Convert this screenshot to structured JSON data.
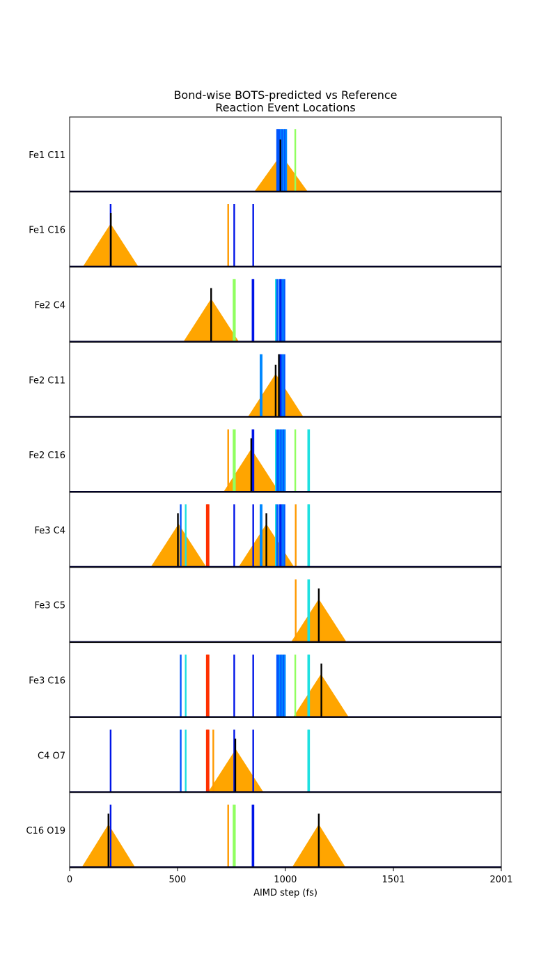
{
  "chart_data": {
    "type": "event-strip",
    "title_line1": "Bond-wise BOTS-predicted vs Reference",
    "title_line2": "Reaction Event Locations",
    "xlabel": "AIMD step (fs)",
    "xlim": [
      0,
      2001
    ],
    "xticks": [
      {
        "value": 0,
        "label": "0"
      },
      {
        "value": 500,
        "label": "500"
      },
      {
        "value": 1000,
        "label": "1000"
      },
      {
        "value": 1501,
        "label": "1501"
      },
      {
        "value": 2001,
        "label": "2001"
      }
    ],
    "colors": {
      "triangle": "#ffa500",
      "reference": "#000000",
      "dark_blue": "#0015e8",
      "blue": "#0055ff",
      "light_blue": "#0088ff",
      "cyan": "#1ee0e0",
      "green": "#90ff60",
      "orange": "#ff9a00",
      "red": "#ff3000",
      "baseline": "#00002a"
    },
    "panels": [
      {
        "label": "Fe1 C11",
        "triangles": [
          {
            "center": 980,
            "half_width": 125,
            "height": 0.5
          }
        ],
        "predicted": [
          {
            "x": 962,
            "h": 0.84,
            "c": "blue"
          },
          {
            "x": 968,
            "h": 0.84,
            "c": "blue"
          },
          {
            "x": 974,
            "h": 0.84,
            "c": "blue"
          },
          {
            "x": 980,
            "h": 0.84,
            "c": "light_blue"
          },
          {
            "x": 986,
            "h": 0.84,
            "c": "blue"
          },
          {
            "x": 992,
            "h": 0.84,
            "c": "light_blue"
          },
          {
            "x": 998,
            "h": 0.84,
            "c": "blue"
          },
          {
            "x": 1004,
            "h": 0.84,
            "c": "light_blue"
          },
          {
            "x": 1046,
            "h": 0.84,
            "c": "green"
          }
        ],
        "reference": [
          {
            "x": 977,
            "h": 0.7
          }
        ]
      },
      {
        "label": "Fe1 C16",
        "triangles": [
          {
            "center": 190,
            "half_width": 130,
            "height": 0.58
          }
        ],
        "predicted": [
          {
            "x": 190,
            "h": 0.84,
            "c": "dark_blue"
          },
          {
            "x": 735,
            "h": 0.84,
            "c": "orange"
          },
          {
            "x": 763,
            "h": 0.84,
            "c": "dark_blue"
          },
          {
            "x": 851,
            "h": 0.84,
            "c": "dark_blue"
          }
        ],
        "reference": [
          {
            "x": 191,
            "h": 0.72
          }
        ]
      },
      {
        "label": "Fe2 C4",
        "triangles": [
          {
            "center": 656,
            "half_width": 130,
            "height": 0.58
          }
        ],
        "predicted": [
          {
            "x": 760,
            "h": 0.84,
            "c": "green"
          },
          {
            "x": 766,
            "h": 0.84,
            "c": "green"
          },
          {
            "x": 848,
            "h": 0.84,
            "c": "dark_blue"
          },
          {
            "x": 852,
            "h": 0.84,
            "c": "dark_blue"
          },
          {
            "x": 956,
            "h": 0.84,
            "c": "cyan"
          },
          {
            "x": 962,
            "h": 0.84,
            "c": "blue"
          },
          {
            "x": 972,
            "h": 0.84,
            "c": "blue"
          },
          {
            "x": 978,
            "h": 0.84,
            "c": "dark_blue"
          },
          {
            "x": 984,
            "h": 0.84,
            "c": "blue"
          },
          {
            "x": 990,
            "h": 0.84,
            "c": "light_blue"
          },
          {
            "x": 996,
            "h": 0.84,
            "c": "blue"
          }
        ],
        "reference": [
          {
            "x": 656,
            "h": 0.72
          }
        ]
      },
      {
        "label": "Fe2 C11",
        "triangles": [
          {
            "center": 955,
            "half_width": 130,
            "height": 0.58
          }
        ],
        "predicted": [
          {
            "x": 885,
            "h": 0.84,
            "c": "light_blue"
          },
          {
            "x": 890,
            "h": 0.84,
            "c": "light_blue"
          },
          {
            "x": 972,
            "h": 0.84,
            "c": "blue"
          },
          {
            "x": 978,
            "h": 0.84,
            "c": "dark_blue"
          },
          {
            "x": 984,
            "h": 0.84,
            "c": "blue"
          },
          {
            "x": 990,
            "h": 0.84,
            "c": "light_blue"
          },
          {
            "x": 996,
            "h": 0.84,
            "c": "blue"
          }
        ],
        "reference": [
          {
            "x": 955,
            "h": 0.7
          },
          {
            "x": 970,
            "h": 0.84
          }
        ]
      },
      {
        "label": "Fe2 C16",
        "triangles": [
          {
            "center": 842,
            "half_width": 130,
            "height": 0.58
          }
        ],
        "predicted": [
          {
            "x": 735,
            "h": 0.84,
            "c": "orange"
          },
          {
            "x": 760,
            "h": 0.84,
            "c": "green"
          },
          {
            "x": 766,
            "h": 0.84,
            "c": "green"
          },
          {
            "x": 848,
            "h": 0.84,
            "c": "dark_blue"
          },
          {
            "x": 852,
            "h": 0.84,
            "c": "dark_blue"
          },
          {
            "x": 956,
            "h": 0.84,
            "c": "cyan"
          },
          {
            "x": 962,
            "h": 0.84,
            "c": "blue"
          },
          {
            "x": 968,
            "h": 0.84,
            "c": "blue"
          },
          {
            "x": 974,
            "h": 0.84,
            "c": "light_blue"
          },
          {
            "x": 980,
            "h": 0.84,
            "c": "blue"
          },
          {
            "x": 986,
            "h": 0.84,
            "c": "light_blue"
          },
          {
            "x": 992,
            "h": 0.84,
            "c": "blue"
          },
          {
            "x": 998,
            "h": 0.84,
            "c": "light_blue"
          },
          {
            "x": 1046,
            "h": 0.84,
            "c": "green"
          },
          {
            "x": 1106,
            "h": 0.84,
            "c": "cyan"
          },
          {
            "x": 1110,
            "h": 0.84,
            "c": "cyan"
          }
        ],
        "reference": [
          {
            "x": 842,
            "h": 0.72
          }
        ]
      },
      {
        "label": "Fe3 C4",
        "triangles": [
          {
            "center": 505,
            "half_width": 130,
            "height": 0.58
          },
          {
            "center": 912,
            "half_width": 130,
            "height": 0.58
          }
        ],
        "predicted": [
          {
            "x": 515,
            "h": 0.84,
            "c": "blue"
          },
          {
            "x": 538,
            "h": 0.84,
            "c": "cyan"
          },
          {
            "x": 636,
            "h": 0.84,
            "c": "red"
          },
          {
            "x": 640,
            "h": 0.84,
            "c": "red"
          },
          {
            "x": 644,
            "h": 0.84,
            "c": "red"
          },
          {
            "x": 763,
            "h": 0.84,
            "c": "dark_blue"
          },
          {
            "x": 851,
            "h": 0.84,
            "c": "dark_blue"
          },
          {
            "x": 885,
            "h": 0.84,
            "c": "light_blue"
          },
          {
            "x": 890,
            "h": 0.84,
            "c": "light_blue"
          },
          {
            "x": 956,
            "h": 0.84,
            "c": "cyan"
          },
          {
            "x": 962,
            "h": 0.84,
            "c": "blue"
          },
          {
            "x": 972,
            "h": 0.84,
            "c": "blue"
          },
          {
            "x": 978,
            "h": 0.84,
            "c": "dark_blue"
          },
          {
            "x": 984,
            "h": 0.84,
            "c": "blue"
          },
          {
            "x": 990,
            "h": 0.84,
            "c": "light_blue"
          },
          {
            "x": 996,
            "h": 0.84,
            "c": "blue"
          },
          {
            "x": 1048,
            "h": 0.84,
            "c": "orange"
          },
          {
            "x": 1106,
            "h": 0.84,
            "c": "cyan"
          },
          {
            "x": 1110,
            "h": 0.84,
            "c": "cyan"
          }
        ],
        "reference": [
          {
            "x": 502,
            "h": 0.72
          },
          {
            "x": 912,
            "h": 0.72
          }
        ]
      },
      {
        "label": "Fe3 C5",
        "triangles": [
          {
            "center": 1155,
            "half_width": 130,
            "height": 0.58
          }
        ],
        "predicted": [
          {
            "x": 1048,
            "h": 0.84,
            "c": "orange"
          },
          {
            "x": 1106,
            "h": 0.84,
            "c": "cyan"
          },
          {
            "x": 1110,
            "h": 0.84,
            "c": "cyan"
          }
        ],
        "reference": [
          {
            "x": 1155,
            "h": 0.72
          }
        ]
      },
      {
        "label": "Fe3 C16",
        "triangles": [
          {
            "center": 1165,
            "half_width": 130,
            "height": 0.58
          }
        ],
        "predicted": [
          {
            "x": 515,
            "h": 0.84,
            "c": "blue"
          },
          {
            "x": 538,
            "h": 0.84,
            "c": "cyan"
          },
          {
            "x": 636,
            "h": 0.84,
            "c": "red"
          },
          {
            "x": 640,
            "h": 0.84,
            "c": "red"
          },
          {
            "x": 644,
            "h": 0.84,
            "c": "red"
          },
          {
            "x": 763,
            "h": 0.84,
            "c": "dark_blue"
          },
          {
            "x": 851,
            "h": 0.84,
            "c": "dark_blue"
          },
          {
            "x": 962,
            "h": 0.84,
            "c": "blue"
          },
          {
            "x": 968,
            "h": 0.84,
            "c": "blue"
          },
          {
            "x": 974,
            "h": 0.84,
            "c": "light_blue"
          },
          {
            "x": 980,
            "h": 0.84,
            "c": "blue"
          },
          {
            "x": 986,
            "h": 0.84,
            "c": "light_blue"
          },
          {
            "x": 992,
            "h": 0.84,
            "c": "blue"
          },
          {
            "x": 998,
            "h": 0.84,
            "c": "light_blue"
          },
          {
            "x": 1046,
            "h": 0.84,
            "c": "green"
          },
          {
            "x": 1106,
            "h": 0.84,
            "c": "cyan"
          },
          {
            "x": 1110,
            "h": 0.84,
            "c": "cyan"
          }
        ],
        "reference": [
          {
            "x": 1167,
            "h": 0.72
          }
        ]
      },
      {
        "label": "C4 O7",
        "triangles": [
          {
            "center": 770,
            "half_width": 130,
            "height": 0.58
          }
        ],
        "predicted": [
          {
            "x": 190,
            "h": 0.84,
            "c": "dark_blue"
          },
          {
            "x": 515,
            "h": 0.84,
            "c": "blue"
          },
          {
            "x": 538,
            "h": 0.84,
            "c": "cyan"
          },
          {
            "x": 636,
            "h": 0.84,
            "c": "red"
          },
          {
            "x": 640,
            "h": 0.84,
            "c": "red"
          },
          {
            "x": 644,
            "h": 0.84,
            "c": "red"
          },
          {
            "x": 666,
            "h": 0.84,
            "c": "orange"
          },
          {
            "x": 763,
            "h": 0.84,
            "c": "dark_blue"
          },
          {
            "x": 851,
            "h": 0.84,
            "c": "dark_blue"
          },
          {
            "x": 1106,
            "h": 0.84,
            "c": "cyan"
          },
          {
            "x": 1110,
            "h": 0.84,
            "c": "cyan"
          }
        ],
        "reference": [
          {
            "x": 768,
            "h": 0.72
          }
        ]
      },
      {
        "label": "C16 O19",
        "triangles": [
          {
            "center": 180,
            "half_width": 125,
            "height": 0.58
          },
          {
            "center": 1155,
            "half_width": 125,
            "height": 0.58
          }
        ],
        "predicted": [
          {
            "x": 190,
            "h": 0.84,
            "c": "dark_blue"
          },
          {
            "x": 735,
            "h": 0.84,
            "c": "orange"
          },
          {
            "x": 760,
            "h": 0.84,
            "c": "green"
          },
          {
            "x": 766,
            "h": 0.84,
            "c": "green"
          },
          {
            "x": 848,
            "h": 0.84,
            "c": "dark_blue"
          },
          {
            "x": 852,
            "h": 0.84,
            "c": "dark_blue"
          }
        ],
        "reference": [
          {
            "x": 180,
            "h": 0.72
          },
          {
            "x": 1155,
            "h": 0.72
          }
        ]
      }
    ]
  }
}
